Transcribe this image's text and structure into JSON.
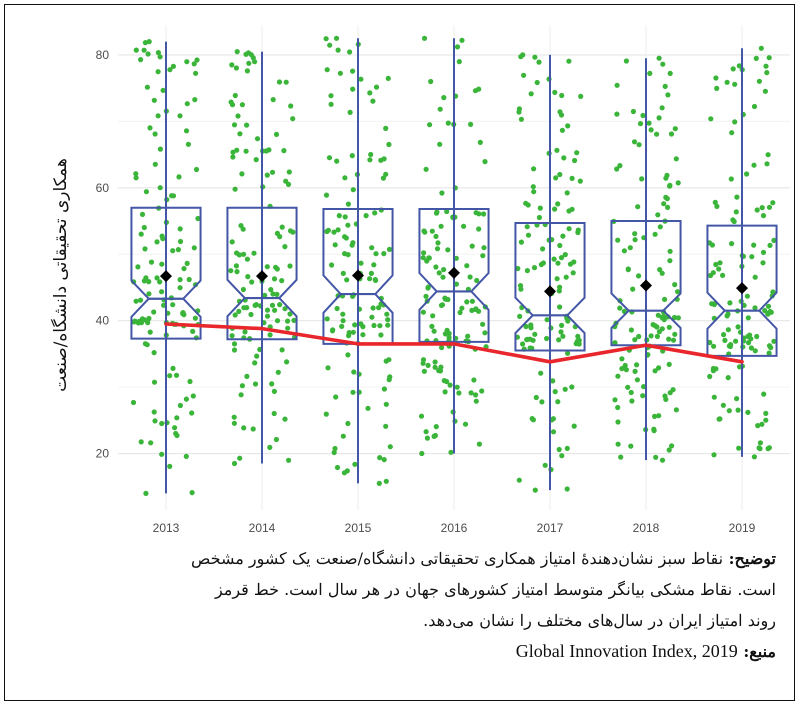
{
  "chart_data": {
    "type": "boxplot",
    "ylabel": "همکاری تحقیقاتی دانشگاه/صنعت",
    "categories": [
      "2013",
      "2014",
      "2015",
      "2016",
      "2017",
      "2018",
      "2019"
    ],
    "yticks": [
      20,
      40,
      60,
      80
    ],
    "ylim": [
      11.5,
      84.5
    ],
    "grid": true,
    "series": [
      {
        "q1": 37.3,
        "median": 43.3,
        "q3": 57.0,
        "min": 14.0,
        "max": 82.0,
        "mean": 46.7
      },
      {
        "q1": 37.2,
        "median": 43.4,
        "q3": 57.0,
        "min": 18.5,
        "max": 80.5,
        "mean": 46.7
      },
      {
        "q1": 36.5,
        "median": 44.0,
        "q3": 56.8,
        "min": 15.5,
        "max": 82.5,
        "mean": 46.8
      },
      {
        "q1": 36.8,
        "median": 44.4,
        "q3": 56.8,
        "min": 20.0,
        "max": 82.5,
        "mean": 47.2
      },
      {
        "q1": 35.5,
        "median": 40.8,
        "q3": 54.7,
        "min": 14.5,
        "max": 80.0,
        "mean": 44.4
      },
      {
        "q1": 36.3,
        "median": 41.5,
        "q3": 55.0,
        "min": 19.0,
        "max": 79.5,
        "mean": 45.3
      },
      {
        "q1": 34.7,
        "median": 41.5,
        "q3": 54.3,
        "min": 19.5,
        "max": 81.0,
        "mean": 44.9
      }
    ],
    "iran_scores": [
      39.5,
      38.8,
      36.5,
      36.5,
      33.8,
      36.3,
      33.8
    ],
    "points_per_year": 130,
    "colors": {
      "box": "#4456a6",
      "points": "#3ab53a",
      "iran_line": "#e8262b",
      "mean": "#000000",
      "grid": "#e6e6e6",
      "tick_text": "#4d4d4d"
    }
  },
  "caption": {
    "note_label": "توضیح",
    "line1": "نقاط سبز نشان‌دهندهٔ امتیاز همکاری تحقیقاتی دانشگاه/صنعت یک کشور مشخص",
    "line2": "است. نقاط مشکی بیانگر متوسط امتیاز کشورهای جهان در هر سال است. خط قرمز",
    "line3": "روند امتیاز ایران در سال‌های مختلف را نشان می‌دهد.",
    "source_label": "منبع",
    "source_value": "Global Innovation Index, 2019"
  }
}
